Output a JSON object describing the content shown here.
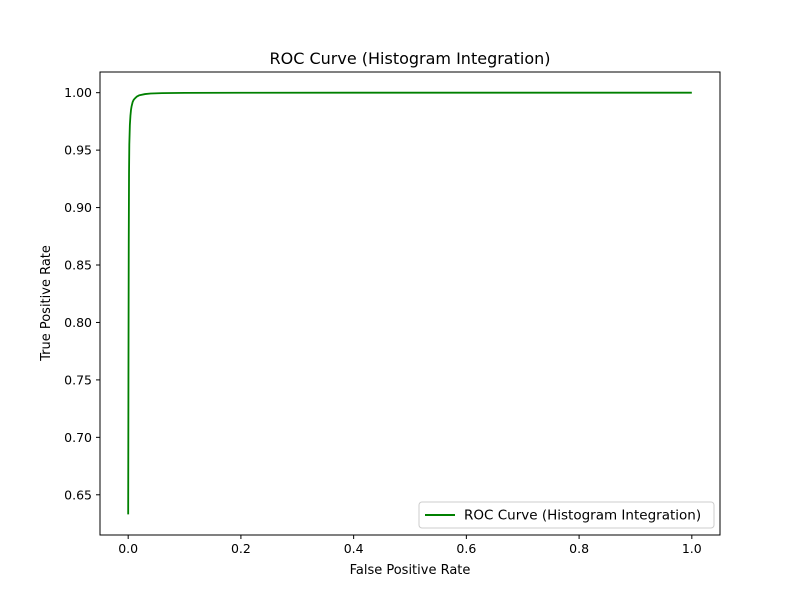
{
  "chart_data": {
    "type": "line",
    "title": "ROC Curve (Histogram Integration)",
    "xlabel": "False Positive Rate",
    "ylabel": "True Positive Rate",
    "xlim": [
      -0.05,
      1.05
    ],
    "ylim": [
      0.615,
      1.018
    ],
    "x_ticks": [
      0.0,
      0.2,
      0.4,
      0.6,
      0.8,
      1.0
    ],
    "x_tick_labels": [
      "0.0",
      "0.2",
      "0.4",
      "0.6",
      "0.8",
      "1.0"
    ],
    "y_ticks": [
      0.65,
      0.7,
      0.75,
      0.8,
      0.85,
      0.9,
      0.95,
      1.0
    ],
    "y_tick_labels": [
      "0.65",
      "0.70",
      "0.75",
      "0.80",
      "0.85",
      "0.90",
      "0.95",
      "1.00"
    ],
    "grid": false,
    "legend_position": "bottom-right",
    "series": [
      {
        "name": "ROC Curve (Histogram Integration)",
        "color": "#008000",
        "x": [
          0.0,
          0.0005,
          0.001,
          0.0015,
          0.002,
          0.003,
          0.004,
          0.005,
          0.006,
          0.008,
          0.01,
          0.012,
          0.015,
          0.02,
          0.03,
          0.04,
          0.06,
          0.1,
          0.2,
          0.4,
          0.6,
          0.8,
          1.0
        ],
        "y": [
          0.633,
          0.76,
          0.87,
          0.93,
          0.955,
          0.972,
          0.98,
          0.985,
          0.988,
          0.992,
          0.994,
          0.995,
          0.9965,
          0.9978,
          0.9988,
          0.9993,
          0.9996,
          0.9998,
          0.99995,
          1.0,
          1.0,
          1.0,
          1.0
        ]
      }
    ]
  }
}
